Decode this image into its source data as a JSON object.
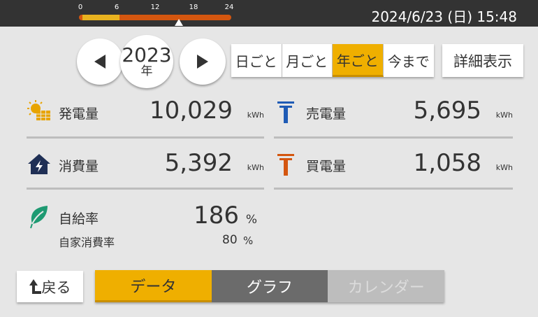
{
  "header": {
    "timeline": {
      "ticks": [
        "0",
        "6",
        "12",
        "18",
        "24"
      ],
      "current_hour": 15.8,
      "highlight_range": [
        0,
        6
      ],
      "colors": {
        "track": "#d4560f",
        "highlight": "#e8b21f"
      }
    },
    "datetime": "2024/6/23 (日) 15:48"
  },
  "nav": {
    "prev_icon": "triangle-left-icon",
    "year": "2023",
    "year_unit": "年",
    "next_icon": "triangle-right-icon"
  },
  "period_tabs": [
    {
      "label": "日ごと",
      "active": false
    },
    {
      "label": "月ごと",
      "active": false
    },
    {
      "label": "年ごと",
      "active": true
    },
    {
      "label": "今まで",
      "active": false
    }
  ],
  "detail_button": "詳細表示",
  "stats": {
    "generation": {
      "label": "発電量",
      "value": "10,029",
      "unit": "kWh",
      "icon": "solar-panel-icon"
    },
    "consumption": {
      "label": "消費量",
      "value": "5,392",
      "unit": "kWh",
      "icon": "house-lightning-icon"
    },
    "sold": {
      "label": "売電量",
      "value": "5,695",
      "unit": "kWh",
      "icon": "utility-pole-blue-icon"
    },
    "bought": {
      "label": "買電量",
      "value": "1,058",
      "unit": "kWh",
      "icon": "utility-pole-orange-icon"
    },
    "self_sufficiency": {
      "label": "自給率",
      "value": "186",
      "unit": "%",
      "icon": "leaf-icon"
    },
    "self_consumption": {
      "label": "自家消費率",
      "value": "80",
      "unit": "%"
    }
  },
  "bottom": {
    "back": "戻る",
    "tabs": [
      {
        "label": "データ",
        "state": "active"
      },
      {
        "label": "グラフ",
        "state": "normal"
      },
      {
        "label": "カレンダー",
        "state": "disabled"
      }
    ]
  },
  "colors": {
    "accent": "#efaf00",
    "sell": "#1f5bb5",
    "buy": "#d4560f",
    "leaf": "#1e9a72",
    "house": "#1f2f55"
  }
}
